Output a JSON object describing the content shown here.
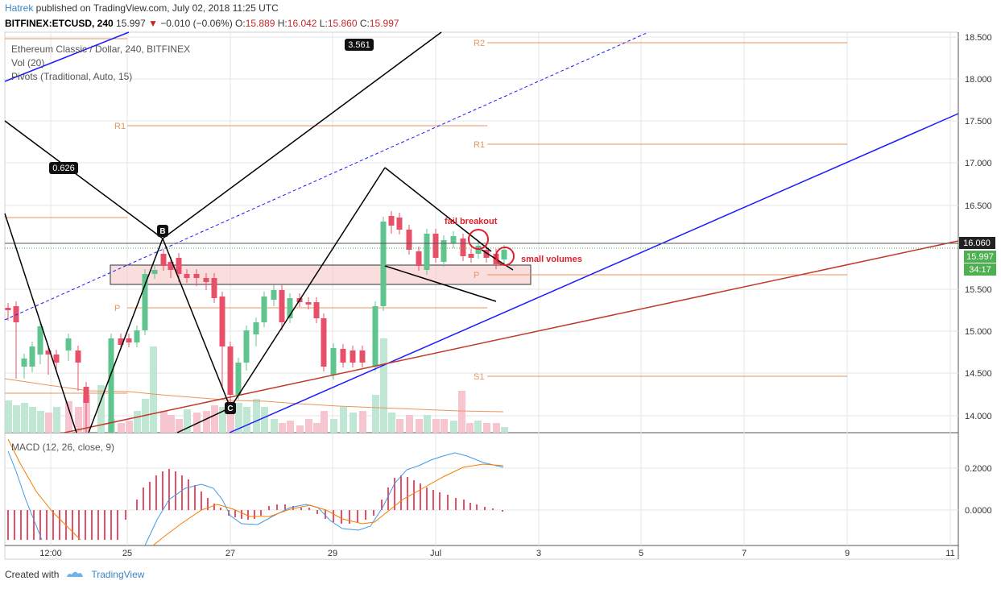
{
  "header": {
    "user": "Hatrek",
    "published": " published on TradingView.com, July 02, 2018 11:25 UTC",
    "symbol": "BITFINEX:ETCUSD, 240",
    "last": " 15.997 ",
    "change_arrow": "▼",
    "change": " −0.010 (−0.06%) ",
    "o_label": "O:",
    "o": "15.889",
    "h_label": " H:",
    "h": "16.042",
    "l_label": " L:",
    "l": "15.860",
    "c_label": " C:",
    "c": "15.997"
  },
  "legend": {
    "title": "Ethereum Classic / Dollar, 240, BITFINEX",
    "vol": "Vol (20)",
    "pivots": "Pivots (Traditional, Auto, 15)",
    "macd": "MACD (12, 26, close, 9)"
  },
  "price_axis": {
    "ticks": [
      "18.500",
      "18.000",
      "17.500",
      "17.000",
      "16.500",
      "16.000",
      "15.500",
      "15.000",
      "14.500",
      "14.000"
    ],
    "label_high": "16.060",
    "label_last": "15.997",
    "label_countdown": "34:17"
  },
  "macd_axis": {
    "ticks": [
      "0.2000",
      "0.0000"
    ]
  },
  "time_axis": {
    "ticks": [
      "12:00",
      "25",
      "27",
      "29",
      "Jul",
      "3",
      "5",
      "7",
      "9",
      "11"
    ]
  },
  "pivots": {
    "r2": "R2",
    "r1_left": "R1",
    "r1_right": "R1",
    "p_left": "P",
    "p_right": "P",
    "s1": "S1"
  },
  "pattern": {
    "fib_626": "0.626",
    "fib_3561": "3.561",
    "point_b": "B",
    "point_c": "C"
  },
  "annotations": {
    "fail_breakout": "fail breakout",
    "small_volumes": "small volumes"
  },
  "footer": {
    "created_with": "Created with",
    "brand": "TradingView"
  },
  "colors": {
    "up": "#26a69a",
    "up_candle": "#5fc48e",
    "down": "#e8506a",
    "pivot": "#e8955e",
    "blue_line": "#1a1aff",
    "red_line": "#c0392b",
    "annotation": "#e0202a"
  }
}
